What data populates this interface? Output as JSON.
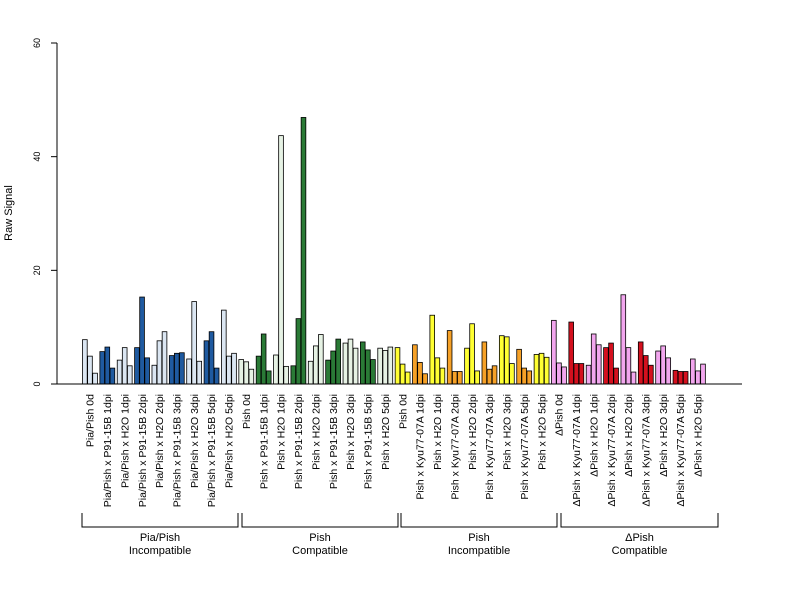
{
  "chart_data": {
    "type": "bar",
    "ylabel": "Raw Signal",
    "ylim": [
      0,
      60
    ],
    "yticks": [
      0,
      20,
      40,
      60
    ],
    "categories": [
      "Pia/Pish 0d",
      "Pia/Pish x P91-15B 1dpi",
      "Pia/Pish x H2O 1dpi",
      "Pia/Pish x P91-15B 2dpi",
      "Pia/Pish x H2O 2dpi",
      "Pia/Pish x P91-15B 3dpi",
      "Pia/Pish x H2O 3dpi",
      "Pia/Pish x P91-15B 5dpi",
      "Pia/Pish x H2O 5dpi",
      "Pish 0d",
      "Pish x P91-15B 1dpi",
      "Pish x H2O 1dpi",
      "Pish x P91-15B 2dpi",
      "Pish x H2O 2dpi",
      "Pish x P91-15B 3dpi",
      "Pish x H2O 3dpi",
      "Pish x P91-15B 5dpi",
      "Pish x H2O 5dpi",
      "Pish 0d",
      "Pish x Kyu77-07A 1dpi",
      "Pish x H2O 1dpi",
      "Pish x Kyu77-07A 2dpi",
      "Pish x H2O 2dpi",
      "Pish x Kyu77-07A 3dpi",
      "Pish x H2O 3dpi",
      "Pish x Kyu77-07A 5dpi",
      "Pish x H2O 5dpi",
      "ΔPish 0d",
      "ΔPish x Kyu77-07A 1dpi",
      "ΔPish x H2O 1dpi",
      "ΔPish x Kyu77-07A 2dpi",
      "ΔPish x H2O 2dpi",
      "ΔPish x Kyu77-07A 3dpi",
      "ΔPish x H2O 3dpi",
      "ΔPish x Kyu77-07A 5dpi",
      "ΔPish x H2O 5dpi"
    ],
    "values": [
      [
        7.8,
        4.9,
        1.9
      ],
      [
        5.7,
        6.5,
        2.8
      ],
      [
        4.2,
        6.4,
        3.2
      ],
      [
        6.4,
        15.3,
        4.6
      ],
      [
        3.3,
        7.6,
        9.2
      ],
      [
        5.0,
        5.4,
        5.5
      ],
      [
        4.4,
        14.5,
        4.0
      ],
      [
        7.6,
        9.2,
        2.8
      ],
      [
        13.0,
        4.9,
        5.4
      ],
      [
        4.3,
        3.9,
        2.6
      ],
      [
        4.9,
        8.8,
        2.3
      ],
      [
        5.1,
        43.7,
        3.1
      ],
      [
        3.2,
        11.5,
        46.9
      ],
      [
        4.0,
        6.7,
        8.7
      ],
      [
        4.2,
        5.8,
        7.9
      ],
      [
        7.2,
        7.9,
        6.3
      ],
      [
        7.4,
        6.0,
        4.3
      ],
      [
        6.3,
        5.9,
        6.5
      ],
      [
        6.4,
        3.5,
        2.1
      ],
      [
        6.9,
        3.8,
        1.8
      ],
      [
        12.1,
        4.6,
        2.8
      ],
      [
        9.4,
        2.2,
        2.2
      ],
      [
        6.3,
        10.6,
        2.3
      ],
      [
        7.4,
        2.6,
        3.2
      ],
      [
        8.5,
        8.3,
        3.6
      ],
      [
        6.1,
        2.8,
        2.3
      ],
      [
        5.2,
        5.4,
        4.7
      ],
      [
        11.2,
        3.7,
        3.0
      ],
      [
        10.9,
        3.6,
        3.6
      ],
      [
        3.3,
        8.8,
        6.9
      ],
      [
        6.4,
        7.2,
        2.8
      ],
      [
        15.7,
        6.4,
        2.1
      ],
      [
        7.4,
        5.0,
        3.3
      ],
      [
        5.8,
        6.7,
        4.6
      ],
      [
        2.4,
        2.2,
        2.2
      ],
      [
        4.4,
        2.3,
        3.5
      ]
    ],
    "colors": {
      "pia_light": "#dbe6f2",
      "pia_dark": "#1f5aa0",
      "pish_light": "#e6f2e4",
      "pish_dark": "#2a7a36",
      "pishinc_0d": "#ffff33",
      "pishinc_kyu": "#f6a127",
      "pishinc_h2o": "#ffff33",
      "dpish_0d": "#f2a6ee",
      "dpish_kyu": "#d4101e",
      "dpish_h2o": "#f2a6ee"
    },
    "groups": [
      {
        "line1": "Pia/Pish",
        "line2": "Incompatible"
      },
      {
        "line1": "Pish",
        "line2": "Compatible"
      },
      {
        "line1": "Pish",
        "line2": "Incompatible"
      },
      {
        "line1": "ΔPish",
        "line2": "Compatible"
      }
    ]
  }
}
